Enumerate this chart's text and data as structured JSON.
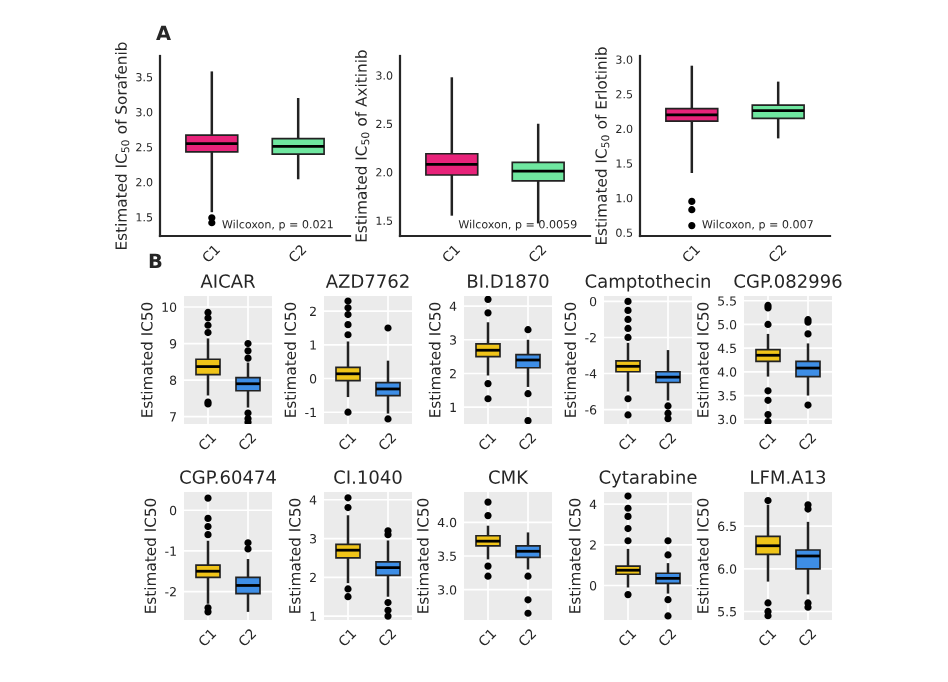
{
  "chart_data": [
    {
      "type": "box",
      "ylabel": "Estimated IC$_{50}$ of Sorafenib",
      "categories": [
        "C1",
        "C2"
      ],
      "colors": [
        "#e8237a",
        "#6fe7a0"
      ],
      "grid": false,
      "annotations": [
        "A",
        "Wilcoxon, p = 0.021"
      ],
      "ylim": [
        1.23,
        3.8
      ],
      "yticks": [
        1.5,
        {
          "value": 2,
          "label": "2.0"
        },
        2.5,
        {
          "value": 3,
          "label": "3.0"
        },
        3.5
      ],
      "boxes": [
        {
          "low": 1.57,
          "q1": 2.43,
          "median": 2.55,
          "q3": 2.67,
          "high": 3.58,
          "outliers": [
            1.42,
            1.49
          ]
        },
        {
          "low": 2.04,
          "q1": 2.4,
          "median": 2.51,
          "q3": 2.62,
          "high": 3.2
        }
      ]
    },
    {
      "type": "box",
      "ylabel": "Estimated IC$_{50}$ of Axitinib",
      "categories": [
        "C1",
        "C2"
      ],
      "colors": [
        "#e8237a",
        "#6fe7a0"
      ],
      "grid": false,
      "annotations": [
        "Wilcoxon, p = 0.0059"
      ],
      "ylim": [
        1.34,
        3.2
      ],
      "yticks": [
        1.5,
        {
          "value": 2,
          "label": "2.0"
        },
        2.5,
        {
          "value": 3,
          "label": "3.0"
        }
      ],
      "boxes": [
        {
          "low": 1.55,
          "q1": 1.97,
          "median": 2.08,
          "q3": 2.19,
          "high": 2.98
        },
        {
          "low": 1.47,
          "q1": 1.91,
          "median": 2.01,
          "q3": 2.1,
          "high": 2.5
        }
      ]
    },
    {
      "type": "box",
      "ylabel": "Estimated IC$_{50}$ of Erlotinib",
      "categories": [
        "C1",
        "C2"
      ],
      "colors": [
        "#e8237a",
        "#6fe7a0"
      ],
      "grid": false,
      "annotations": [
        "Wilcoxon, p = 0.007"
      ],
      "ylim": [
        0.45,
        3.05
      ],
      "yticks": [
        0.5,
        {
          "value": 1,
          "label": "1.0"
        },
        1.5,
        {
          "value": 2,
          "label": "2.0"
        },
        2.5,
        {
          "value": 3,
          "label": "3.0"
        }
      ],
      "boxes": [
        {
          "low": 1.36,
          "q1": 2.11,
          "median": 2.2,
          "q3": 2.29,
          "high": 2.91,
          "outliers": [
            0.95,
            0.83,
            0.6
          ]
        },
        {
          "low": 1.86,
          "q1": 2.15,
          "median": 2.26,
          "q3": 2.34,
          "high": 2.68
        }
      ]
    },
    {
      "type": "box",
      "title": "AICAR",
      "ylabel": "Estimated IC50",
      "categories": [
        "C1",
        "C2"
      ],
      "colors": [
        "#f0c419",
        "#3e8ee6"
      ],
      "grid": true,
      "annotations": [
        "B"
      ],
      "ylim": [
        6.8,
        10.3
      ],
      "yticks": [
        7,
        8,
        9,
        10
      ],
      "boxes": [
        {
          "low": 7.58,
          "q1": 8.15,
          "median": 8.37,
          "q3": 8.57,
          "high": 9.14,
          "outliers": [
            9.3,
            9.5,
            9.7,
            9.85,
            7.4,
            7.35
          ]
        },
        {
          "low": 7.25,
          "q1": 7.71,
          "median": 7.9,
          "q3": 8.07,
          "high": 8.48,
          "outliers": [
            8.6,
            8.8,
            9.0,
            7.1,
            6.95,
            6.85
          ]
        }
      ]
    },
    {
      "type": "box",
      "title": "AZD7762",
      "ylabel": "Estimated IC50",
      "categories": [
        "C1",
        "C2"
      ],
      "colors": [
        "#f0c419",
        "#3e8ee6"
      ],
      "grid": true,
      "ylim": [
        -1.35,
        2.45
      ],
      "yticks": [
        -1,
        0,
        1,
        2
      ],
      "boxes": [
        {
          "low": -0.55,
          "q1": -0.06,
          "median": 0.14,
          "q3": 0.33,
          "high": 1.1,
          "outliers": [
            1.3,
            1.6,
            1.9,
            2.1,
            2.3,
            -1.0
          ]
        },
        {
          "low": -1.04,
          "q1": -0.51,
          "median": -0.31,
          "q3": -0.12,
          "high": 0.53,
          "outliers": [
            1.5,
            -1.2
          ]
        }
      ]
    },
    {
      "type": "box",
      "title": "BI.D1870",
      "ylabel": "Estimated IC50",
      "categories": [
        "C1",
        "C2"
      ],
      "colors": [
        "#f0c419",
        "#3e8ee6"
      ],
      "grid": true,
      "ylim": [
        0.5,
        4.3
      ],
      "yticks": [
        1,
        2,
        3,
        4
      ],
      "boxes": [
        {
          "low": 1.94,
          "q1": 2.5,
          "median": 2.69,
          "q3": 2.88,
          "high": 3.52,
          "outliers": [
            3.8,
            4.2,
            1.7,
            1.25
          ]
        },
        {
          "low": 1.6,
          "q1": 2.17,
          "median": 2.4,
          "q3": 2.56,
          "high": 3.0,
          "outliers": [
            3.3,
            1.4,
            0.6
          ]
        }
      ]
    },
    {
      "type": "box",
      "title": "Camptothecin",
      "ylabel": "Estimated IC50",
      "categories": [
        "C1",
        "C2"
      ],
      "colors": [
        "#f0c419",
        "#3e8ee6"
      ],
      "grid": true,
      "ylim": [
        -6.8,
        0.3
      ],
      "yticks": [
        {
          "value": -6,
          "label": "-6"
        },
        {
          "value": -4,
          "label": "-4"
        },
        {
          "value": -2,
          "label": "-2"
        },
        0
      ],
      "boxes": [
        {
          "low": -5.0,
          "q1": -3.9,
          "median": -3.6,
          "q3": -3.3,
          "high": -2.3,
          "outliers": [
            -2.0,
            -1.5,
            -1.0,
            -0.5,
            0.0,
            -5.4,
            -6.3
          ]
        },
        {
          "low": -5.5,
          "q1": -4.5,
          "median": -4.2,
          "q3": -3.9,
          "high": -2.7,
          "outliers": [
            -5.8,
            -6.2,
            -6.5
          ]
        }
      ]
    },
    {
      "type": "box",
      "title": "CGP.082996",
      "ylabel": "Estimated IC50",
      "categories": [
        "C1",
        "C2"
      ],
      "colors": [
        "#f0c419",
        "#3e8ee6"
      ],
      "grid": true,
      "ylim": [
        2.9,
        5.6
      ],
      "yticks": [
        {
          "value": 3,
          "label": "3.0"
        },
        3.5,
        {
          "value": 4,
          "label": "4.0"
        },
        4.5,
        {
          "value": 5,
          "label": "5.0"
        },
        5.5
      ],
      "boxes": [
        {
          "low": 3.9,
          "q1": 4.22,
          "median": 4.35,
          "q3": 4.47,
          "high": 4.8,
          "outliers": [
            5.0,
            5.35,
            5.4,
            3.6,
            3.4,
            3.1,
            2.95
          ]
        },
        {
          "low": 3.5,
          "q1": 3.9,
          "median": 4.08,
          "q3": 4.22,
          "high": 4.6,
          "outliers": [
            4.8,
            5.05,
            5.1,
            3.3
          ]
        }
      ]
    },
    {
      "type": "box",
      "title": "CGP.60474",
      "ylabel": "Estimated IC50",
      "categories": [
        "C1",
        "C2"
      ],
      "colors": [
        "#f0c419",
        "#3e8ee6"
      ],
      "grid": true,
      "ylim": [
        -2.7,
        0.45
      ],
      "yticks": [
        {
          "value": -2,
          "label": "-2"
        },
        {
          "value": -1,
          "label": "-1"
        },
        0
      ],
      "boxes": [
        {
          "low": -2.3,
          "q1": -1.65,
          "median": -1.5,
          "q3": -1.35,
          "high": -0.75,
          "outliers": [
            -0.6,
            -0.4,
            -0.2,
            0.3,
            -2.4,
            -2.5
          ]
        },
        {
          "low": -2.5,
          "q1": -2.05,
          "median": -1.85,
          "q3": -1.65,
          "high": -1.2,
          "outliers": [
            -0.95,
            -0.8
          ]
        }
      ]
    },
    {
      "type": "box",
      "title": "CI.1040",
      "ylabel": "Estimated IC50",
      "categories": [
        "C1",
        "C2"
      ],
      "colors": [
        "#f0c419",
        "#3e8ee6"
      ],
      "grid": true,
      "ylim": [
        0.9,
        4.2
      ],
      "yticks": [
        1,
        2,
        3,
        4
      ],
      "boxes": [
        {
          "low": 1.85,
          "q1": 2.5,
          "median": 2.7,
          "q3": 2.85,
          "high": 3.6,
          "outliers": [
            3.8,
            4.05,
            1.7,
            1.5
          ]
        },
        {
          "low": 1.5,
          "q1": 2.05,
          "median": 2.25,
          "q3": 2.4,
          "high": 2.95,
          "outliers": [
            3.1,
            3.2,
            1.35,
            1.15,
            1.0
          ]
        }
      ]
    },
    {
      "type": "box",
      "title": "CMK",
      "ylabel": "Estimated IC50",
      "categories": [
        "C1",
        "C2"
      ],
      "colors": [
        "#f0c419",
        "#3e8ee6"
      ],
      "grid": true,
      "ylim": [
        2.55,
        4.45
      ],
      "yticks": [
        {
          "value": 3,
          "label": "3.0"
        },
        3.5,
        {
          "value": 4,
          "label": "4.0"
        }
      ],
      "boxes": [
        {
          "low": 3.45,
          "q1": 3.65,
          "median": 3.72,
          "q3": 3.8,
          "high": 3.95,
          "outliers": [
            4.1,
            4.3,
            3.35,
            3.2
          ]
        },
        {
          "low": 3.3,
          "q1": 3.48,
          "median": 3.57,
          "q3": 3.65,
          "high": 3.85,
          "outliers": [
            3.2,
            2.85,
            2.65
          ]
        }
      ]
    },
    {
      "type": "box",
      "title": "Cytarabine",
      "ylabel": "Estimated IC50",
      "categories": [
        "C1",
        "C2"
      ],
      "colors": [
        "#f0c419",
        "#3e8ee6"
      ],
      "grid": true,
      "ylim": [
        -1.7,
        4.6
      ],
      "yticks": [
        0,
        2,
        4
      ],
      "boxes": [
        {
          "low": -0.1,
          "q1": 0.55,
          "median": 0.75,
          "q3": 0.95,
          "high": 1.8,
          "outliers": [
            2.2,
            2.8,
            3.4,
            3.8,
            4.4,
            -0.45
          ]
        },
        {
          "low": -0.4,
          "q1": 0.1,
          "median": 0.35,
          "q3": 0.6,
          "high": 1.1,
          "outliers": [
            1.5,
            2.2,
            -0.7,
            -1.5
          ]
        }
      ]
    },
    {
      "type": "box",
      "title": "LFM.A13",
      "ylabel": "Estimated IC50",
      "categories": [
        "C1",
        "C2"
      ],
      "colors": [
        "#f0c419",
        "#3e8ee6"
      ],
      "grid": true,
      "ylim": [
        5.4,
        6.9
      ],
      "yticks": [
        5.5,
        {
          "value": 6,
          "label": "6.0"
        },
        6.5
      ],
      "boxes": [
        {
          "low": 5.85,
          "q1": 6.17,
          "median": 6.27,
          "q3": 6.38,
          "high": 6.75,
          "outliers": [
            6.8,
            5.6,
            5.5,
            5.45
          ]
        },
        {
          "low": 5.7,
          "q1": 6.0,
          "median": 6.15,
          "q3": 6.22,
          "high": 6.55,
          "outliers": [
            6.7,
            6.75,
            5.6,
            5.55
          ]
        }
      ]
    }
  ]
}
